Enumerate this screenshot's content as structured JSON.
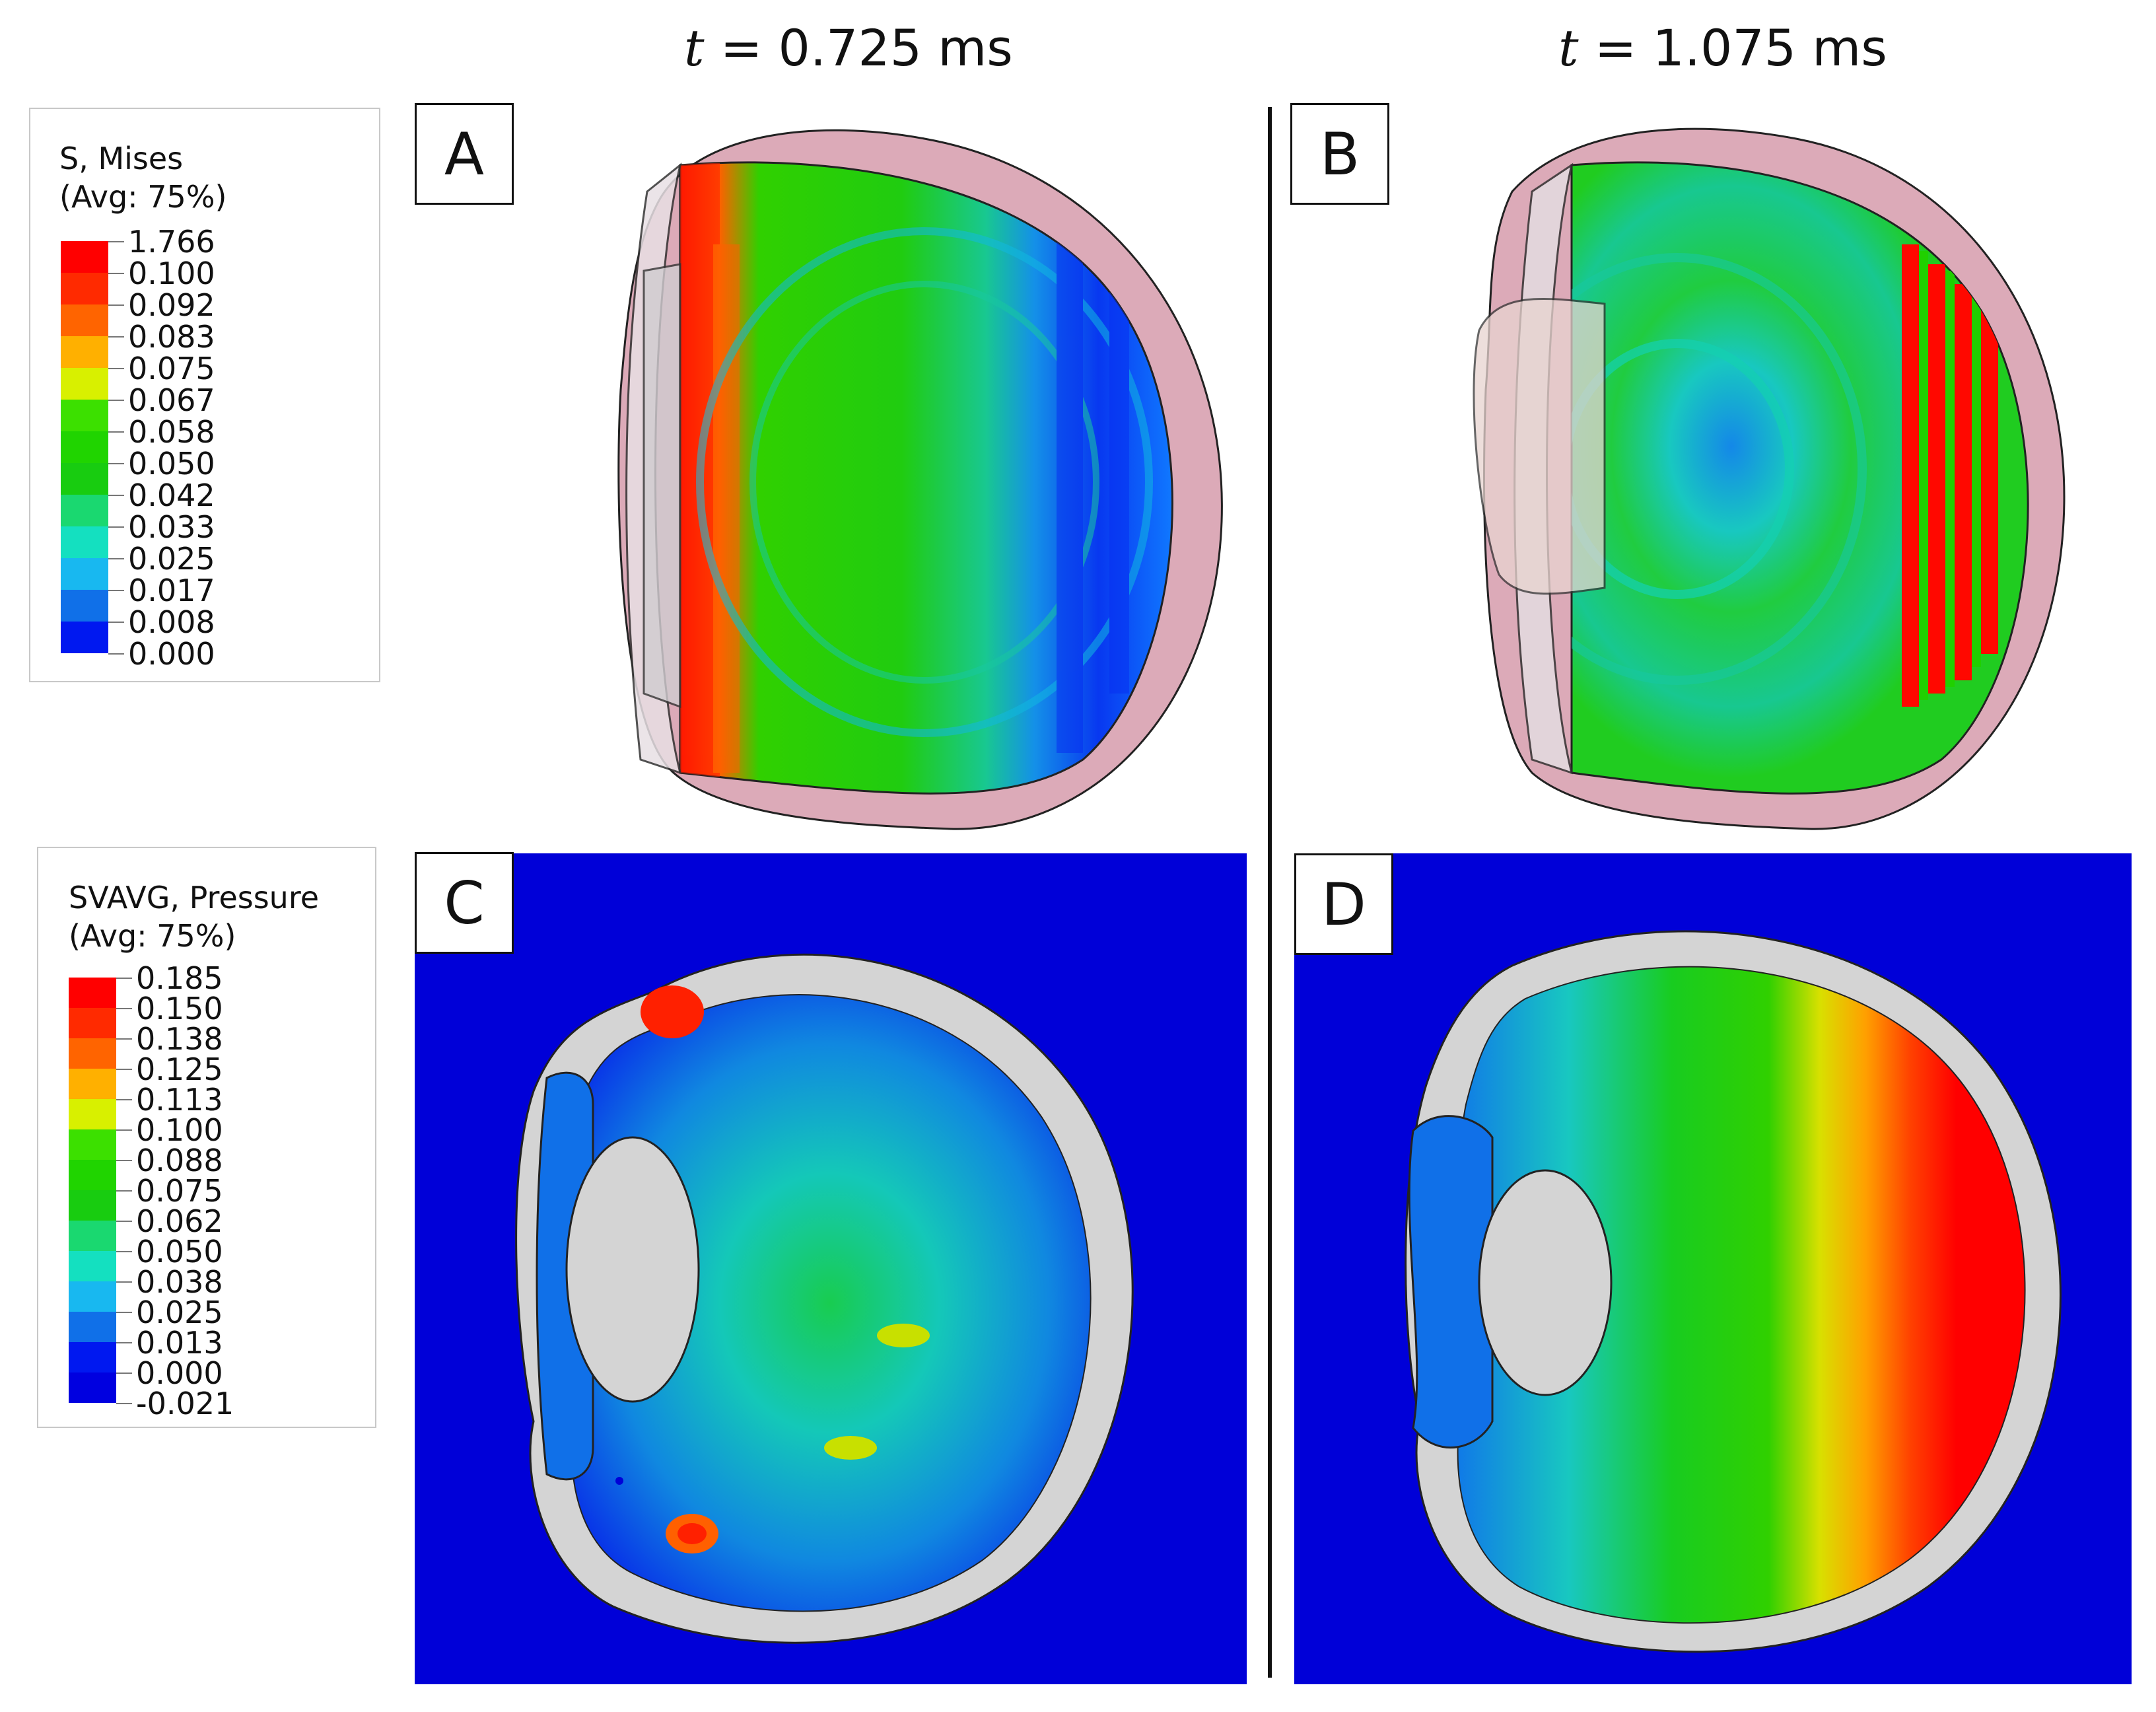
{
  "time_labels": [
    {
      "symbol": "t",
      "rest": " = 0.725 ms"
    },
    {
      "symbol": "t",
      "rest": " = 1.075 ms"
    }
  ],
  "legend_stress": {
    "title_line1": "S, Mises",
    "title_line2": "(Avg: 75%)",
    "ticks": [
      "1.766",
      "0.100",
      "0.092",
      "0.083",
      "0.075",
      "0.067",
      "0.058",
      "0.050",
      "0.042",
      "0.033",
      "0.025",
      "0.017",
      "0.008",
      "0.000"
    ],
    "colors": [
      "#ff0000",
      "#ff2a00",
      "#ff6400",
      "#ffb000",
      "#d8f000",
      "#3ce000",
      "#20d400",
      "#18cc10",
      "#1ad870",
      "#14e0c0",
      "#18b8f0",
      "#1070e8",
      "#0018f0"
    ]
  },
  "legend_pressure": {
    "title_line1": "SVAVG, Pressure",
    "title_line2": "(Avg: 75%)",
    "ticks": [
      "0.185",
      "0.150",
      "0.138",
      "0.125",
      "0.113",
      "0.100",
      "0.088",
      "0.075",
      "0.062",
      "0.050",
      "0.038",
      "0.025",
      "0.013",
      "0.000",
      "-0.021"
    ],
    "colors": [
      "#ff0000",
      "#ff2a00",
      "#ff6400",
      "#ffb000",
      "#d8f000",
      "#3ce000",
      "#20d400",
      "#18cc10",
      "#1ad870",
      "#14e0c0",
      "#18b8f0",
      "#1070e8",
      "#0018f0",
      "#0000e0"
    ]
  },
  "panels": [
    "A",
    "B",
    "C",
    "D"
  ],
  "colors": {
    "background_blue": "#0000d8",
    "sclera_gray": "#d4d4d4",
    "skin_pink": "#dcaab8"
  }
}
